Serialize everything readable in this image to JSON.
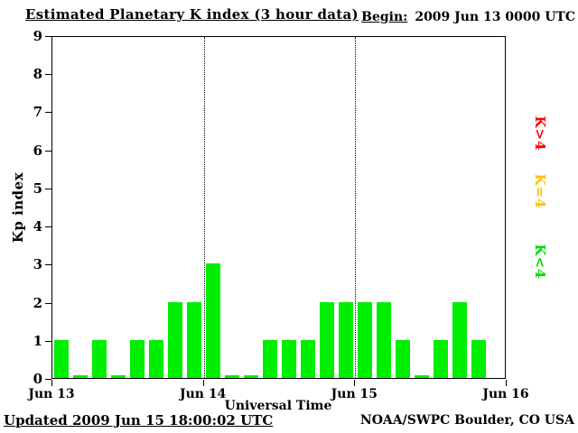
{
  "header": {
    "title": "Estimated Planetary K index (3 hour data)",
    "begin_label": "Begin:",
    "begin_value": "2009 Jun 13 0000 UTC"
  },
  "chart_data": {
    "type": "bar",
    "title": "Estimated Planetary K index (3 hour data)",
    "xlabel": "Universal Time",
    "ylabel": "Kp index",
    "ylim": [
      0,
      9
    ],
    "y_ticks": [
      0,
      1,
      2,
      3,
      4,
      5,
      6,
      7,
      8,
      9
    ],
    "x_tick_labels": [
      "Jun 13",
      "Jun 14",
      "Jun 15",
      "Jun 16"
    ],
    "bars_per_day": 8,
    "bar_color": "#00ee00",
    "grid": "vertical dotted lines at interior day boundaries",
    "legend_position": "right, rotated 90deg",
    "values": [
      1,
      0,
      1,
      0,
      1,
      1,
      2,
      2,
      3,
      0,
      0,
      1,
      1,
      1,
      2,
      2,
      2,
      2,
      1,
      0,
      1,
      2,
      1
    ],
    "legend": [
      {
        "label": "K>4",
        "color": "#ff0000"
      },
      {
        "label": "K=4",
        "color": "#ffc000"
      },
      {
        "label": "K<4",
        "color": "#00dd00"
      }
    ]
  },
  "footer": {
    "updated": "Updated 2009 Jun 15 18:00:02 UTC",
    "source": "NOAA/SWPC Boulder, CO USA"
  }
}
